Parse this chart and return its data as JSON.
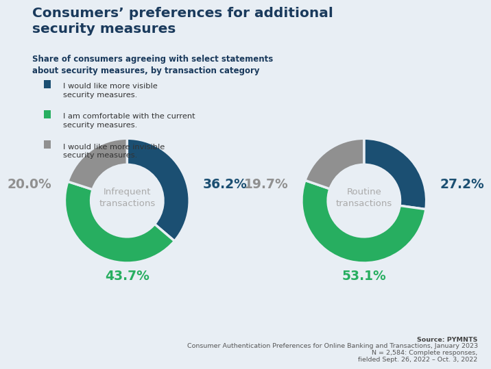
{
  "title": "Consumers’ preferences for additional\nsecurity measures",
  "subtitle": "Share of consumers agreeing with select statements\nabout security measures, by transaction category",
  "legend_items": [
    {
      "label": "I would like more visible\nsecurity measures.",
      "color": "#1b4f72"
    },
    {
      "label": "I am comfortable with the current\nsecurity measures.",
      "color": "#27ae60"
    },
    {
      "label": "I would like more invisible\nsecurity measures.",
      "color": "#909090"
    }
  ],
  "chart1": {
    "label": "Infrequent\ntransactions",
    "values": [
      36.2,
      43.7,
      20.0
    ],
    "colors": [
      "#1b4f72",
      "#27ae60",
      "#909090"
    ]
  },
  "chart2": {
    "label": "Routine\ntransactions",
    "values": [
      27.2,
      53.1,
      19.7
    ],
    "colors": [
      "#1b4f72",
      "#27ae60",
      "#909090"
    ]
  },
  "source_line1": "Source: PYMNTS",
  "source_line2": "Consumer Authentication Preferences for Online Banking and Transactions, January 2023",
  "source_line3": "N = 2,584: Complete responses,",
  "source_line4": "fielded Sept. 26, 2022 – Oct. 3, 2022",
  "background_color": "#e8eef4",
  "title_color": "#1a3a5c",
  "subtitle_color": "#1a3a5c",
  "center_label_color": "#aaaaaa",
  "ann_colors": [
    "#1b4f72",
    "#27ae60",
    "#909090"
  ]
}
